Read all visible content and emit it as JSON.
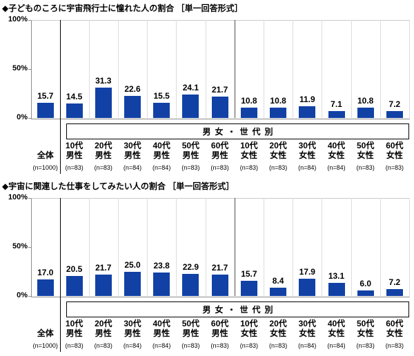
{
  "colors": {
    "background": "#ffffff",
    "bar": "#1241a5",
    "axis": "#8c8c8c",
    "gridline": "#dcdcdc",
    "separator_overall": "#000000",
    "separator_gender": "#4d4d4d",
    "box_border": "#000000",
    "text": "#000000"
  },
  "chart_data": [
    {
      "type": "bar",
      "title": "◆子どものころに宇宙飛行士に憧れた人の割合 ［単一回答形式］",
      "group_label": "男女・世代別",
      "ytick_labels": [
        "100%",
        "50%",
        "0%"
      ],
      "yticks": [
        100,
        50,
        0
      ],
      "ylim": [
        0,
        100
      ],
      "ylabel": "",
      "xlabel": "",
      "legend": "none",
      "grid": "vertical column separators only",
      "value_labels_shown": true,
      "categories": [
        "全体",
        "10代男性",
        "20代男性",
        "30代男性",
        "40代男性",
        "50代男性",
        "60代男性",
        "10代女性",
        "20代女性",
        "30代女性",
        "40代女性",
        "50代女性",
        "60代女性"
      ],
      "n_labels": [
        "(n=1000)",
        "(n=83)",
        "(n=83)",
        "(n=84)",
        "(n=84)",
        "(n=83)",
        "(n=83)",
        "(n=83)",
        "(n=83)",
        "(n=84)",
        "(n=84)",
        "(n=83)",
        "(n=83)"
      ],
      "values": [
        15.7,
        14.5,
        31.3,
        22.6,
        15.5,
        24.1,
        21.7,
        10.8,
        10.8,
        11.9,
        7.1,
        10.8,
        7.2
      ]
    },
    {
      "type": "bar",
      "title": "◆宇宙に関連した仕事をしてみたい人の割合 ［単一回答形式］",
      "group_label": "男女・世代別",
      "ytick_labels": [
        "100%",
        "50%",
        "0%"
      ],
      "yticks": [
        100,
        50,
        0
      ],
      "ylim": [
        0,
        100
      ],
      "ylabel": "",
      "xlabel": "",
      "legend": "none",
      "grid": "vertical column separators only",
      "value_labels_shown": true,
      "categories": [
        "全体",
        "10代男性",
        "20代男性",
        "30代男性",
        "40代男性",
        "50代男性",
        "60代男性",
        "10代女性",
        "20代女性",
        "30代女性",
        "40代女性",
        "50代女性",
        "60代女性"
      ],
      "n_labels": [
        "(n=1000)",
        "(n=83)",
        "(n=83)",
        "(n=84)",
        "(n=84)",
        "(n=83)",
        "(n=83)",
        "(n=83)",
        "(n=83)",
        "(n=84)",
        "(n=84)",
        "(n=83)",
        "(n=83)"
      ],
      "values": [
        17.0,
        20.5,
        21.7,
        25.0,
        23.8,
        22.9,
        21.7,
        15.7,
        8.4,
        17.9,
        13.1,
        6.0,
        7.2
      ]
    }
  ]
}
